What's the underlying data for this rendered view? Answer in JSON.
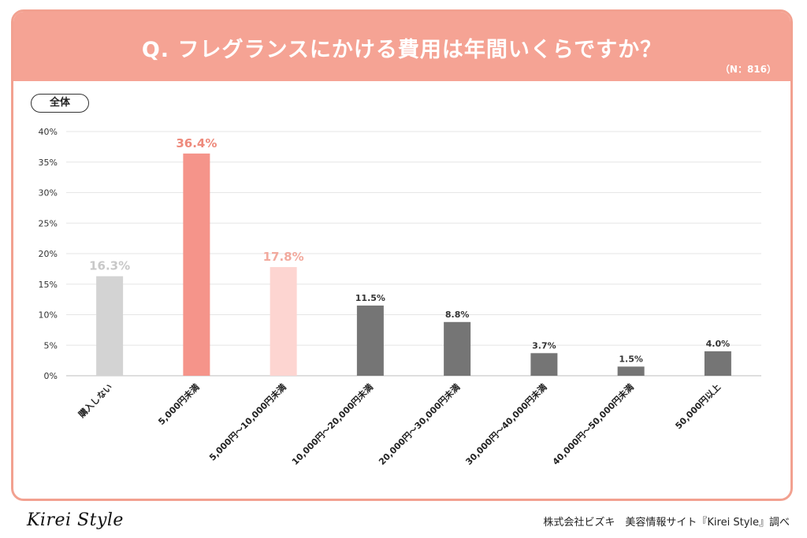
{
  "header": {
    "title": "Q. フレグランスにかける費用は年間いくらですか？",
    "n_label": "（N：816）"
  },
  "segment_label": "全体",
  "footer": {
    "logo": "Kirei Style",
    "credit": "株式会社ビズキ　美容情報サイト『Kirei Style』調べ"
  },
  "colors": {
    "header_bg": "#f5a394",
    "bar_gray_light": "#d3d3d3",
    "bar_coral": "#f5948a",
    "bar_pink_light": "#fdd5d1",
    "bar_dark": "#757575",
    "label_gray": "#c8c8c8",
    "label_coral": "#ee8a7c",
    "label_pink": "#f2aa9e",
    "label_dark": "#333333"
  },
  "chart_data": {
    "type": "bar",
    "title": "Q. フレグランスにかける費用は年間いくらですか？",
    "categories": [
      "購入しない",
      "5,000円未満",
      "5,000円～10,000円未満",
      "10,000円～20,000円未満",
      "20,000円～30,000円未満",
      "30,000円～40,000円未満",
      "40,000円～50,000円未満",
      "50,000円以上"
    ],
    "values": [
      16.3,
      36.4,
      17.8,
      11.5,
      8.8,
      3.7,
      1.5,
      4.0
    ],
    "value_labels": [
      "16.3%",
      "36.4%",
      "17.8%",
      "11.5%",
      "8.8%",
      "3.7%",
      "1.5%",
      "4.0%"
    ],
    "ylim": [
      0,
      40
    ],
    "yticks": [
      "0%",
      "5%",
      "10%",
      "15%",
      "20%",
      "25%",
      "30%",
      "35%",
      "40%"
    ],
    "grid": true,
    "xlabel": "",
    "ylabel": ""
  }
}
